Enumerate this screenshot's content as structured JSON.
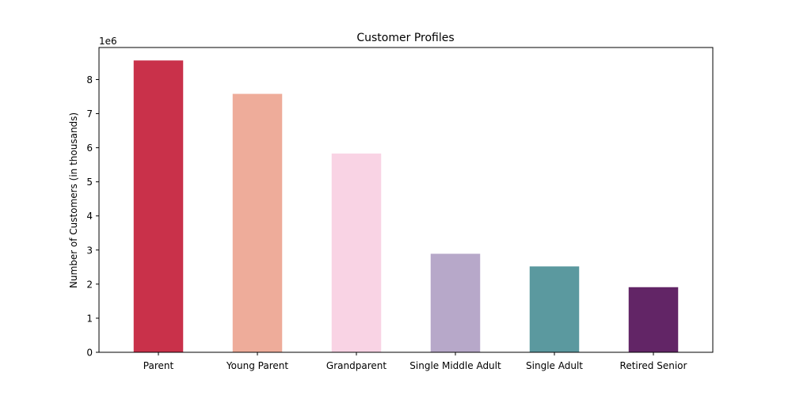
{
  "chart_data": {
    "type": "bar",
    "title": "Customer Profiles",
    "xlabel": "",
    "ylabel": "Number of Customers (in thousands)",
    "y_offset_label": "1e6",
    "categories": [
      "Parent",
      "Young Parent",
      "Grandparent",
      "Single Middle Adult",
      "Single Adult",
      "Retired Senior"
    ],
    "values": [
      8560000,
      7580000,
      5830000,
      2890000,
      2520000,
      1910000
    ],
    "colors": [
      "#c9314a",
      "#eeac9a",
      "#f9d3e4",
      "#b7a8c9",
      "#5b999f",
      "#622566"
    ],
    "ylim": [
      0,
      8940000
    ],
    "y_ticks": [
      0,
      1,
      2,
      3,
      4,
      5,
      6,
      7,
      8
    ],
    "y_tick_scale": 1000000,
    "grid": false,
    "legend": "none"
  }
}
